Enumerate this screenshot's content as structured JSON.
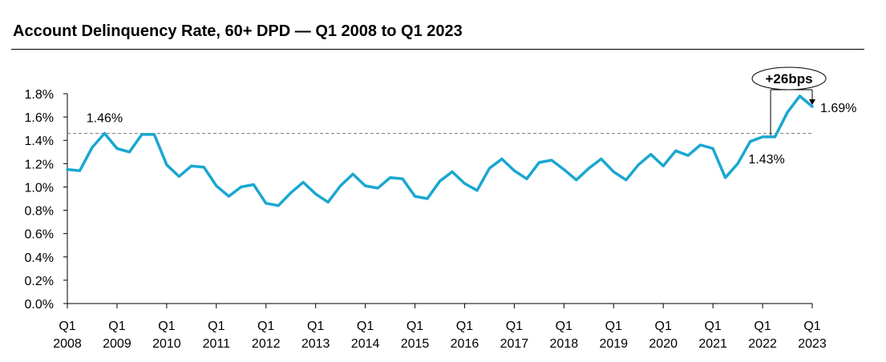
{
  "title": "Account Delinquency Rate, 60+ DPD — Q1 2008 to Q1 2023",
  "colors": {
    "line": "#1aa7d0",
    "axis": "#000000",
    "reference": "#808080"
  },
  "chart_data": {
    "type": "line",
    "title": "Account Delinquency Rate, 60+ DPD — Q1 2008 to Q1 2023",
    "xlabel": "",
    "ylabel": "",
    "ylim": [
      0,
      1.8
    ],
    "y_ticks": [
      "0.0%",
      "0.2%",
      "0.4%",
      "0.6%",
      "0.8%",
      "1.0%",
      "1.2%",
      "1.4%",
      "1.6%",
      "1.8%"
    ],
    "grid": false,
    "x_tick_labels": [
      {
        "quarter": "Q1",
        "year": "2008"
      },
      {
        "quarter": "Q1",
        "year": "2009"
      },
      {
        "quarter": "Q1",
        "year": "2010"
      },
      {
        "quarter": "Q1",
        "year": "2011"
      },
      {
        "quarter": "Q1",
        "year": "2012"
      },
      {
        "quarter": "Q1",
        "year": "2013"
      },
      {
        "quarter": "Q1",
        "year": "2014"
      },
      {
        "quarter": "Q1",
        "year": "2015"
      },
      {
        "quarter": "Q1",
        "year": "2016"
      },
      {
        "quarter": "Q1",
        "year": "2017"
      },
      {
        "quarter": "Q1",
        "year": "2018"
      },
      {
        "quarter": "Q1",
        "year": "2019"
      },
      {
        "quarter": "Q1",
        "year": "2020"
      },
      {
        "quarter": "Q1",
        "year": "2021"
      },
      {
        "quarter": "Q1",
        "year": "2022"
      },
      {
        "quarter": "Q1",
        "year": "2023"
      }
    ],
    "x": [
      "Q1 2008",
      "Q2 2008",
      "Q3 2008",
      "Q4 2008",
      "Q1 2009",
      "Q2 2009",
      "Q3 2009",
      "Q4 2009",
      "Q1 2010",
      "Q2 2010",
      "Q3 2010",
      "Q4 2010",
      "Q1 2011",
      "Q2 2011",
      "Q3 2011",
      "Q4 2011",
      "Q1 2012",
      "Q2 2012",
      "Q3 2012",
      "Q4 2012",
      "Q1 2013",
      "Q2 2013",
      "Q3 2013",
      "Q4 2013",
      "Q1 2014",
      "Q2 2014",
      "Q3 2014",
      "Q4 2014",
      "Q1 2015",
      "Q2 2015",
      "Q3 2015",
      "Q4 2015",
      "Q1 2016",
      "Q2 2016",
      "Q3 2016",
      "Q4 2016",
      "Q1 2017",
      "Q2 2017",
      "Q3 2017",
      "Q4 2017",
      "Q1 2018",
      "Q2 2018",
      "Q3 2018",
      "Q4 2018",
      "Q1 2019",
      "Q2 2019",
      "Q3 2019",
      "Q4 2019",
      "Q1 2020",
      "Q2 2020",
      "Q3 2020",
      "Q4 2020",
      "Q1 2021",
      "Q2 2021",
      "Q3 2021",
      "Q4 2021",
      "Q1 2022",
      "Q2 2022",
      "Q3 2022",
      "Q4 2022",
      "Q1 2023"
    ],
    "values": [
      1.15,
      1.14,
      1.34,
      1.46,
      1.33,
      1.3,
      1.45,
      1.45,
      1.19,
      1.09,
      1.18,
      1.17,
      1.01,
      0.92,
      1.0,
      1.02,
      0.86,
      0.84,
      0.95,
      1.04,
      0.94,
      0.87,
      1.01,
      1.11,
      1.01,
      0.99,
      1.08,
      1.07,
      0.92,
      0.9,
      1.05,
      1.13,
      1.03,
      0.97,
      1.16,
      1.24,
      1.14,
      1.07,
      1.21,
      1.23,
      1.15,
      1.06,
      1.16,
      1.24,
      1.13,
      1.06,
      1.19,
      1.28,
      1.18,
      1.31,
      1.27,
      1.36,
      1.33,
      1.08,
      1.2,
      1.39,
      1.43,
      1.43,
      1.64,
      1.78,
      1.69
    ],
    "reference_line": {
      "value": 1.46,
      "style": "dashed"
    },
    "data_labels": [
      {
        "x": "Q4 2008",
        "value": 1.46,
        "text": "1.46%"
      },
      {
        "x": "Q1 2022",
        "value": 1.43,
        "text": "1.43%"
      },
      {
        "x": "Q1 2023",
        "value": 1.69,
        "text": "1.69%"
      }
    ],
    "callout": {
      "text": "+26bps",
      "from": "Q1 2022",
      "to": "Q1 2023"
    }
  }
}
